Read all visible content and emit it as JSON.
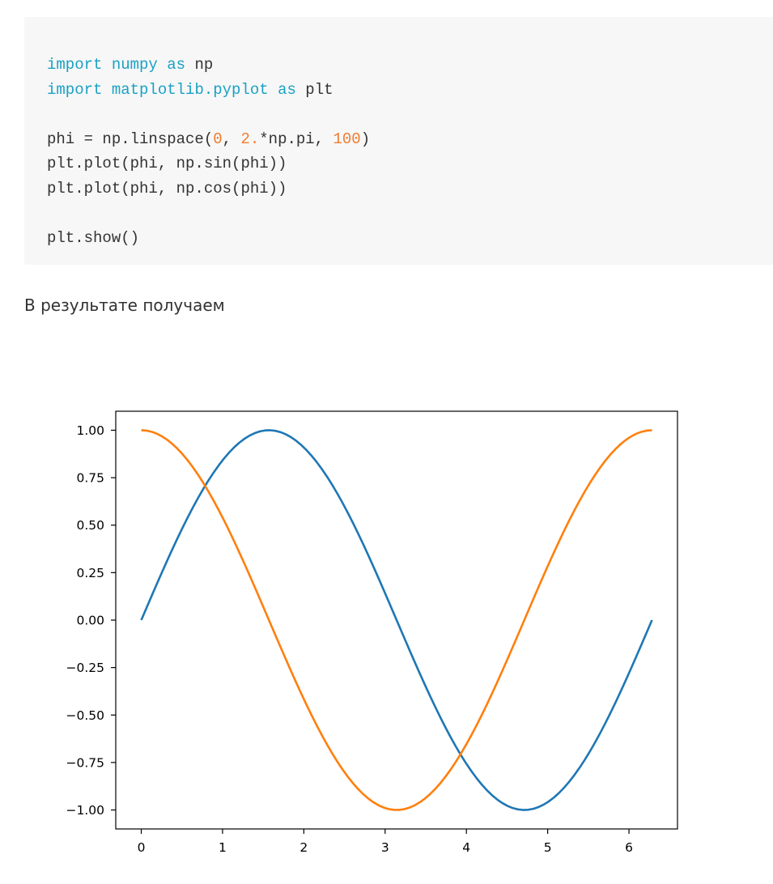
{
  "code": {
    "lines": [
      [
        {
          "t": "import",
          "c": "kw"
        },
        {
          "t": " ",
          "c": "plain"
        },
        {
          "t": "numpy",
          "c": "mod"
        },
        {
          "t": " ",
          "c": "plain"
        },
        {
          "t": "as",
          "c": "kw"
        },
        {
          "t": " np",
          "c": "plain"
        }
      ],
      [
        {
          "t": "import",
          "c": "kw"
        },
        {
          "t": " ",
          "c": "plain"
        },
        {
          "t": "matplotlib.pyplot",
          "c": "mod"
        },
        {
          "t": " ",
          "c": "plain"
        },
        {
          "t": "as",
          "c": "kw"
        },
        {
          "t": " plt",
          "c": "plain"
        }
      ],
      [],
      [
        {
          "t": "phi = np.linspace(",
          "c": "plain"
        },
        {
          "t": "0",
          "c": "num"
        },
        {
          "t": ", ",
          "c": "plain"
        },
        {
          "t": "2.",
          "c": "num"
        },
        {
          "t": "*np.pi, ",
          "c": "plain"
        },
        {
          "t": "100",
          "c": "num"
        },
        {
          "t": ")",
          "c": "plain"
        }
      ],
      [
        {
          "t": "plt.plot(phi, np.sin(phi))",
          "c": "plain"
        }
      ],
      [
        {
          "t": "plt.plot(phi, np.cos(phi))",
          "c": "plain"
        }
      ],
      [],
      [
        {
          "t": "plt.show()",
          "c": "plain"
        }
      ]
    ]
  },
  "result_text": "В результате получаем",
  "chart_data": {
    "type": "line",
    "title": "",
    "xlabel": "",
    "ylabel": "",
    "xlim": [
      -0.314,
      6.597
    ],
    "ylim": [
      -1.1,
      1.1
    ],
    "x_ticks": [
      0,
      1,
      2,
      3,
      4,
      5,
      6
    ],
    "x_tick_labels": [
      "0",
      "1",
      "2",
      "3",
      "4",
      "5",
      "6"
    ],
    "y_ticks": [
      1.0,
      0.75,
      0.5,
      0.25,
      0.0,
      -0.25,
      -0.5,
      -0.75,
      -1.0
    ],
    "y_tick_labels": [
      "1.00",
      "0.75",
      "0.50",
      "0.25",
      "0.00",
      "−0.25",
      "−0.50",
      "−0.75",
      "−1.00"
    ],
    "grid": false,
    "legend": "none",
    "series": [
      {
        "color": "#1f77b4",
        "x": [
          0,
          0.5,
          1.0,
          1.5708,
          2.0,
          2.5,
          3.1416,
          3.5,
          4.0,
          4.7124,
          5.0,
          5.5,
          6.2832
        ],
        "values": [
          0.0,
          0.479,
          0.841,
          1.0,
          0.909,
          0.598,
          0.0,
          -0.351,
          -0.757,
          -1.0,
          -0.959,
          -0.706,
          0.0
        ]
      },
      {
        "color": "#ff7f0e",
        "x": [
          0,
          0.5,
          1.0,
          1.5708,
          2.0,
          2.5,
          3.1416,
          3.5,
          4.0,
          4.7124,
          5.0,
          5.5,
          6.2832
        ],
        "values": [
          1.0,
          0.878,
          0.54,
          0.0,
          -0.416,
          -0.801,
          -1.0,
          -0.936,
          -0.654,
          0.0,
          0.284,
          0.709,
          1.0
        ]
      }
    ]
  }
}
